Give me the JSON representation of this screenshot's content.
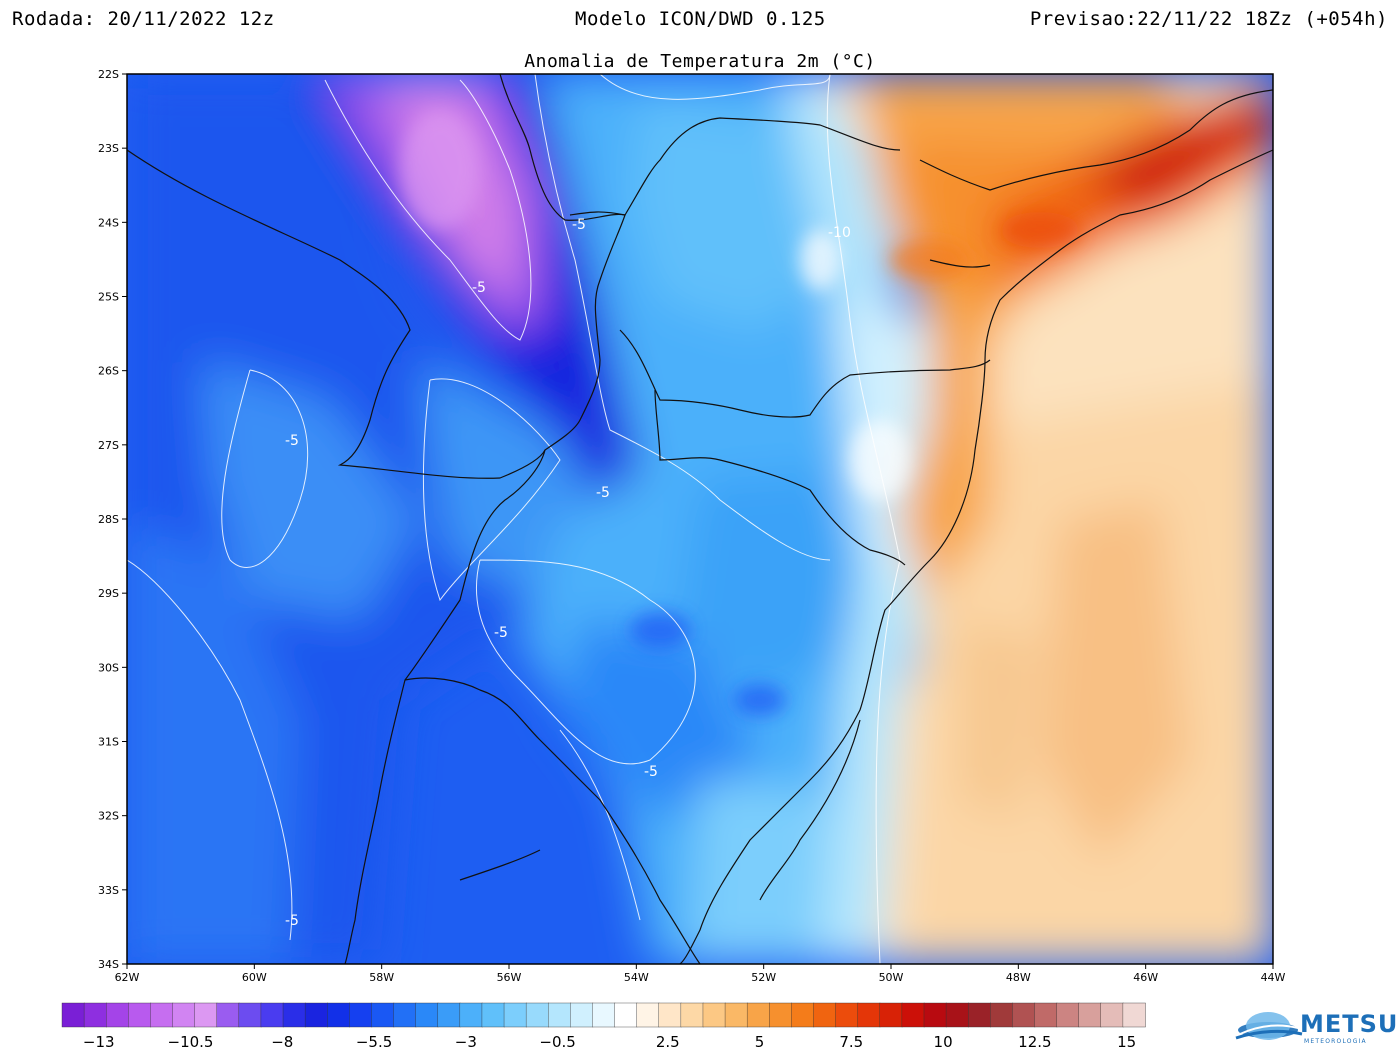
{
  "header": {
    "rodada": "Rodada: 20/11/2022 12z",
    "modelo": "Modelo ICON/DWD 0.125",
    "previsao": "Previsao:22/11/22 18Zz (+054h)",
    "subtitle": "Anomalia de Temperatura 2m (°C)"
  },
  "map": {
    "lat_ticks": [
      "22S",
      "23S",
      "24S",
      "25S",
      "26S",
      "27S",
      "28S",
      "29S",
      "30S",
      "31S",
      "32S",
      "33S",
      "34S"
    ],
    "lon_ticks": [
      "62W",
      "60W",
      "58W",
      "56W",
      "54W",
      "52W",
      "50W",
      "48W",
      "46W",
      "44W"
    ],
    "contour_labels": [
      "-5",
      "-10",
      "-5",
      "-5",
      "-5",
      "-5",
      "-5",
      "-5"
    ]
  },
  "colorbar": {
    "labels": [
      "-13",
      "-10.5",
      "-8",
      "-5.5",
      "-3",
      "-0.5",
      "2.5",
      "5",
      "7.5",
      "10",
      "12.5",
      "15"
    ],
    "colors": [
      "#7a1fd6",
      "#8e2fe0",
      "#a444e8",
      "#b85aee",
      "#c66ef0",
      "#d184f2",
      "#dc98f2",
      "#9a5cf0",
      "#6c4cf0",
      "#4a3cf0",
      "#2a2ee8",
      "#1a24e0",
      "#1230e8",
      "#1540f0",
      "#1a58f4",
      "#2270f6",
      "#2a88f8",
      "#3a9cf8",
      "#4cb0fa",
      "#60c0fa",
      "#7ccefc",
      "#98dafc",
      "#b4e6fd",
      "#d0f0fe",
      "#e8f8ff",
      "#ffffff",
      "#fff4e6",
      "#ffe6c8",
      "#fdd8a6",
      "#fcc884",
      "#fab866",
      "#f8a448",
      "#f6902e",
      "#f47c1a",
      "#f06410",
      "#ec4c0c",
      "#e43608",
      "#d82206",
      "#cc1008",
      "#b80a10",
      "#a81218",
      "#9a2228",
      "#a03a3a",
      "#b05252",
      "#c06a68",
      "#cc8482",
      "#d8a09c",
      "#e4bcb8",
      "#f0d8d4"
    ],
    "colorbar_min": -14,
    "colorbar_max": 15.5
  },
  "logo": {
    "name": "METSUL",
    "sub": "METEOROLOGIA"
  }
}
